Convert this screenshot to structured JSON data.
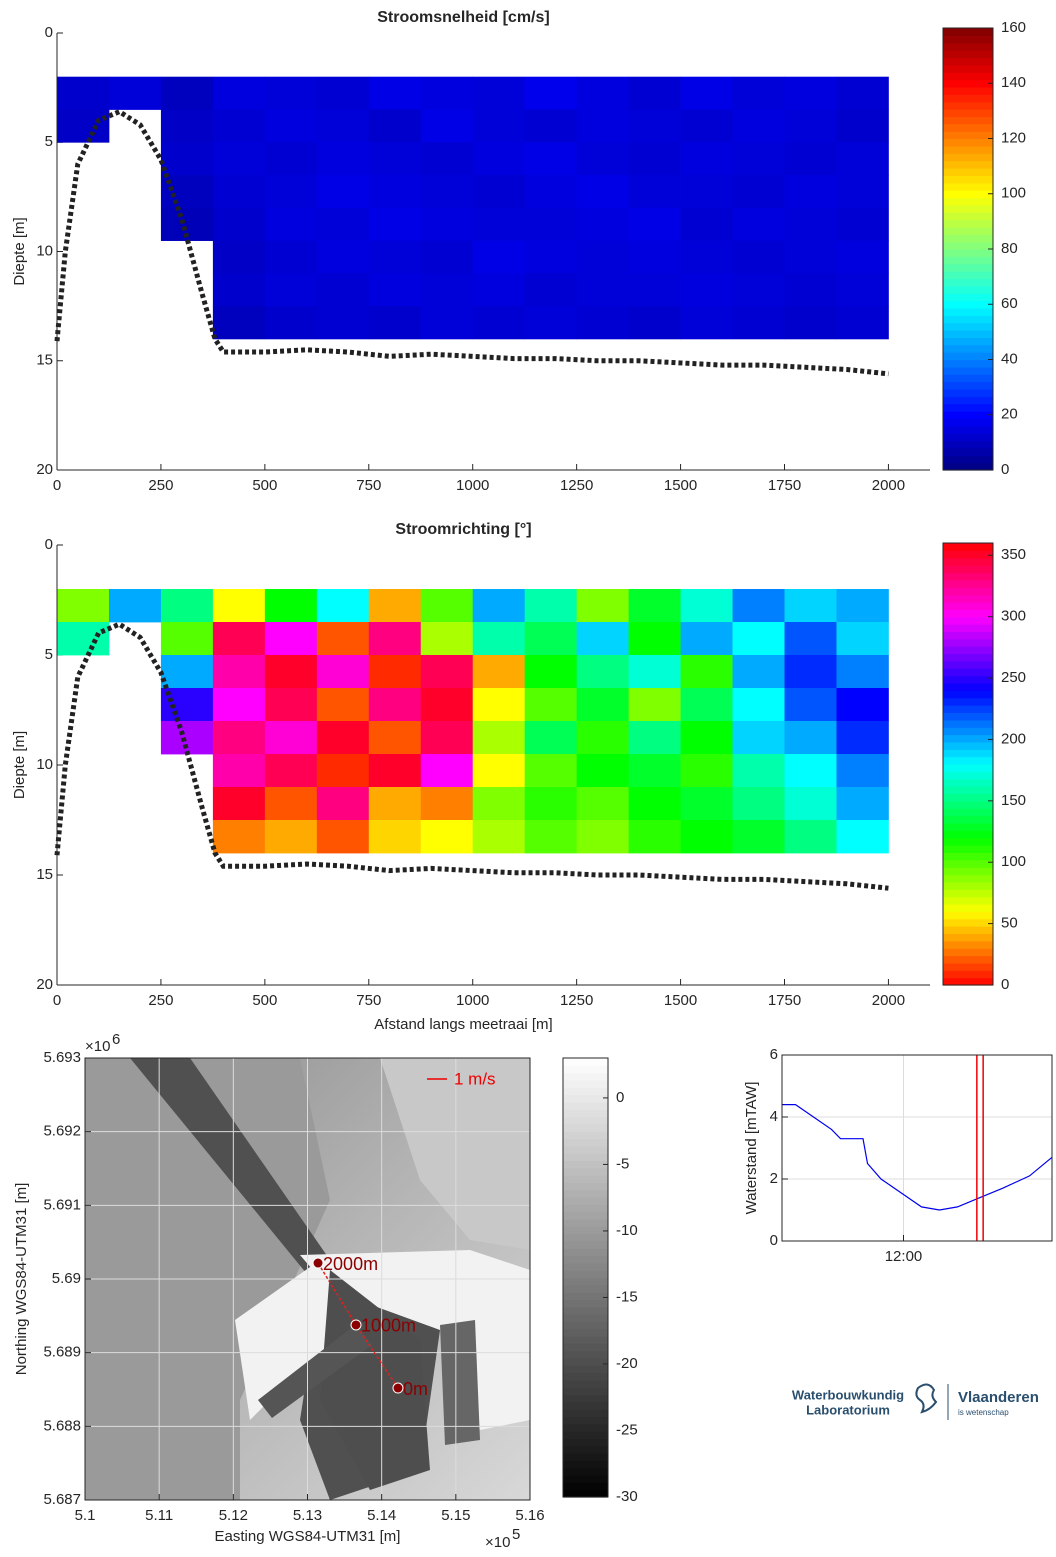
{
  "chart_data": [
    {
      "type": "heatmap",
      "title": "Stroomsnelheid [cm/s]",
      "ylabel": "Diepte [m]",
      "colormap": "jet",
      "xlim": [
        0,
        2100
      ],
      "xticks": [
        0,
        250,
        500,
        750,
        1000,
        1250,
        1500,
        1750,
        2000
      ],
      "ylim": [
        0,
        20
      ],
      "yticks": [
        0,
        5,
        10,
        15,
        20
      ],
      "y_reversed": true,
      "clim": [
        0,
        160
      ],
      "cticks": [
        0,
        20,
        40,
        60,
        80,
        100,
        120,
        140,
        160
      ],
      "x": [
        62.5,
        187.5,
        312.5,
        437.5,
        562.5,
        687.5,
        812.5,
        937.5,
        1062.5,
        1187.5,
        1312.5,
        1437.5,
        1562.5,
        1687.5,
        1812.5,
        1937.5
      ],
      "y": [
        2.75,
        4.25,
        5.75,
        7.25,
        8.75,
        10.25,
        11.75,
        13.25
      ],
      "z": [
        [
          12,
          14,
          10,
          15,
          14,
          13,
          16,
          15,
          14,
          17,
          15,
          13,
          16,
          14,
          15,
          13
        ],
        [
          11,
          null,
          11,
          13,
          15,
          14,
          12,
          16,
          14,
          13,
          15,
          14,
          13,
          15,
          14,
          12
        ],
        [
          null,
          null,
          12,
          14,
          13,
          15,
          14,
          13,
          15,
          16,
          14,
          13,
          15,
          14,
          13,
          14
        ],
        [
          null,
          null,
          10,
          13,
          14,
          16,
          15,
          14,
          13,
          15,
          16,
          14,
          14,
          13,
          15,
          14
        ],
        [
          null,
          null,
          9,
          12,
          15,
          14,
          16,
          15,
          14,
          14,
          15,
          16,
          13,
          15,
          14,
          13
        ],
        [
          null,
          null,
          null,
          11,
          13,
          15,
          14,
          13,
          16,
          15,
          14,
          15,
          14,
          13,
          14,
          15
        ],
        [
          null,
          null,
          null,
          12,
          14,
          13,
          15,
          14,
          15,
          13,
          14,
          14,
          15,
          14,
          13,
          14
        ],
        [
          null,
          null,
          null,
          10,
          12,
          13,
          12,
          14,
          13,
          14,
          13,
          12,
          14,
          13,
          12,
          13
        ]
      ],
      "bed": {
        "color": "#222222",
        "x": [
          0,
          20,
          50,
          100,
          150,
          200,
          250,
          300,
          350,
          380,
          400,
          500,
          600,
          700,
          800,
          900,
          1000,
          1100,
          1200,
          1300,
          1400,
          1500,
          1600,
          1700,
          1800,
          1900,
          2000
        ],
        "values": [
          14.1,
          10,
          6,
          4,
          3.6,
          4.2,
          5.8,
          8.5,
          12,
          14,
          14.6,
          14.6,
          14.5,
          14.6,
          14.8,
          14.7,
          14.8,
          14.9,
          14.9,
          15.0,
          15.0,
          15.1,
          15.2,
          15.2,
          15.3,
          15.4,
          15.6
        ]
      }
    },
    {
      "type": "heatmap",
      "title": "Stroomrichting [°]",
      "ylabel": "Diepte [m]",
      "xlabel": "Afstand langs meetraai [m]",
      "colormap": "hsv",
      "xlim": [
        0,
        2100
      ],
      "xticks": [
        0,
        250,
        500,
        750,
        1000,
        1250,
        1500,
        1750,
        2000
      ],
      "ylim": [
        0,
        20
      ],
      "yticks": [
        0,
        5,
        10,
        15,
        20
      ],
      "y_reversed": true,
      "clim": [
        0,
        360
      ],
      "cticks": [
        0,
        50,
        100,
        150,
        200,
        250,
        300,
        350
      ],
      "x": [
        62.5,
        187.5,
        312.5,
        437.5,
        562.5,
        687.5,
        812.5,
        937.5,
        1062.5,
        1187.5,
        1312.5,
        1437.5,
        1562.5,
        1687.5,
        1812.5,
        1937.5
      ],
      "y": [
        2.75,
        4.25,
        5.75,
        7.25,
        8.75,
        10.25,
        11.75,
        13.25
      ],
      "z": [
        [
          90,
          200,
          150,
          60,
          120,
          180,
          40,
          100,
          200,
          160,
          90,
          130,
          170,
          210,
          190,
          200
        ],
        [
          160,
          null,
          100,
          340,
          300,
          20,
          330,
          80,
          160,
          140,
          190,
          120,
          200,
          180,
          220,
          190
        ],
        [
          null,
          null,
          200,
          320,
          350,
          310,
          10,
          340,
          40,
          120,
          150,
          170,
          110,
          200,
          230,
          210
        ],
        [
          null,
          null,
          250,
          300,
          340,
          20,
          330,
          350,
          60,
          100,
          130,
          90,
          140,
          180,
          220,
          240
        ],
        [
          null,
          null,
          280,
          330,
          310,
          350,
          20,
          340,
          80,
          140,
          110,
          150,
          120,
          190,
          200,
          230
        ],
        [
          null,
          null,
          null,
          320,
          340,
          10,
          350,
          300,
          60,
          100,
          120,
          130,
          110,
          160,
          180,
          210
        ],
        [
          null,
          null,
          null,
          350,
          20,
          330,
          40,
          30,
          90,
          110,
          100,
          120,
          130,
          150,
          170,
          200
        ],
        [
          null,
          null,
          null,
          30,
          40,
          20,
          50,
          60,
          80,
          100,
          90,
          110,
          120,
          130,
          150,
          180
        ]
      ],
      "bed": {
        "color": "#222222",
        "x": [
          0,
          20,
          50,
          100,
          150,
          200,
          250,
          300,
          350,
          380,
          400,
          500,
          600,
          700,
          800,
          900,
          1000,
          1100,
          1200,
          1300,
          1400,
          1500,
          1600,
          1700,
          1800,
          1900,
          2000
        ],
        "values": [
          14.1,
          10,
          6,
          4,
          3.6,
          4.2,
          5.8,
          8.5,
          12,
          14,
          14.6,
          14.6,
          14.5,
          14.6,
          14.8,
          14.7,
          14.8,
          14.9,
          14.9,
          15.0,
          15.0,
          15.1,
          15.2,
          15.2,
          15.3,
          15.4,
          15.6
        ]
      }
    },
    {
      "type": "map",
      "xlabel": "Easting WGS84-UTM31 [m]",
      "ylabel": "Northing WGS84-UTM31 [m]",
      "x_scale": {
        "base": "×10",
        "exp": "5"
      },
      "y_scale": {
        "base": "×10",
        "exp": "6"
      },
      "xlim": [
        510000,
        516000
      ],
      "xticks": [
        {
          "value": 510000,
          "label": "5.1"
        },
        {
          "value": 511000,
          "label": "5.11"
        },
        {
          "value": 512000,
          "label": "5.12"
        },
        {
          "value": 513000,
          "label": "5.13"
        },
        {
          "value": 514000,
          "label": "5.14"
        },
        {
          "value": 515000,
          "label": "5.15"
        },
        {
          "value": 516000,
          "label": "5.16"
        }
      ],
      "ylim": [
        5687000,
        5693000
      ],
      "yticks": [
        {
          "value": 5687000,
          "label": "5.687"
        },
        {
          "value": 5688000,
          "label": "5.688"
        },
        {
          "value": 5689000,
          "label": "5.689"
        },
        {
          "value": 5690000,
          "label": "5.69"
        },
        {
          "value": 5691000,
          "label": "5.691"
        },
        {
          "value": 5692000,
          "label": "5.692"
        },
        {
          "value": 5693000,
          "label": "5.693"
        }
      ],
      "grid": true,
      "colormap": "gray",
      "clim": [
        -30,
        3
      ],
      "cticks": [
        -30,
        -25,
        -20,
        -15,
        -10,
        -5,
        0
      ],
      "scale_label": "1 m/s",
      "color": "#8b0000",
      "track_color": "#dd2222",
      "points": [
        {
          "label": "0m",
          "x": 514220,
          "y": 5688520
        },
        {
          "label": "1000m",
          "x": 513654,
          "y": 5689376
        },
        {
          "label": "2000m",
          "x": 513142,
          "y": 5690217
        }
      ]
    },
    {
      "type": "line",
      "ylabel": "Waterstand [mTAW]",
      "grid": true,
      "color": "#0000ee",
      "vline_color": "#ee0000",
      "xlim": [
        9.3,
        15.3
      ],
      "xticks": [
        {
          "value": 12,
          "label": "12:00"
        }
      ],
      "ylim": [
        0,
        6
      ],
      "yticks": [
        0,
        2,
        4,
        6
      ],
      "x": [
        9.3,
        9.6,
        10.0,
        10.4,
        10.6,
        11.1,
        11.2,
        11.5,
        12.0,
        12.4,
        12.8,
        13.2,
        13.7,
        14.2,
        14.8,
        15.3
      ],
      "values": [
        4.4,
        4.4,
        4.0,
        3.6,
        3.3,
        3.3,
        2.5,
        2.0,
        1.5,
        1.1,
        1.0,
        1.1,
        1.4,
        1.7,
        2.1,
        2.7
      ],
      "vlines": [
        13.63,
        13.77
      ]
    }
  ],
  "logo": {
    "line1": "Waterbouwkundig",
    "line2": "Laboratorium",
    "name": "Vlaanderen",
    "tagline": "is wetenschap"
  }
}
